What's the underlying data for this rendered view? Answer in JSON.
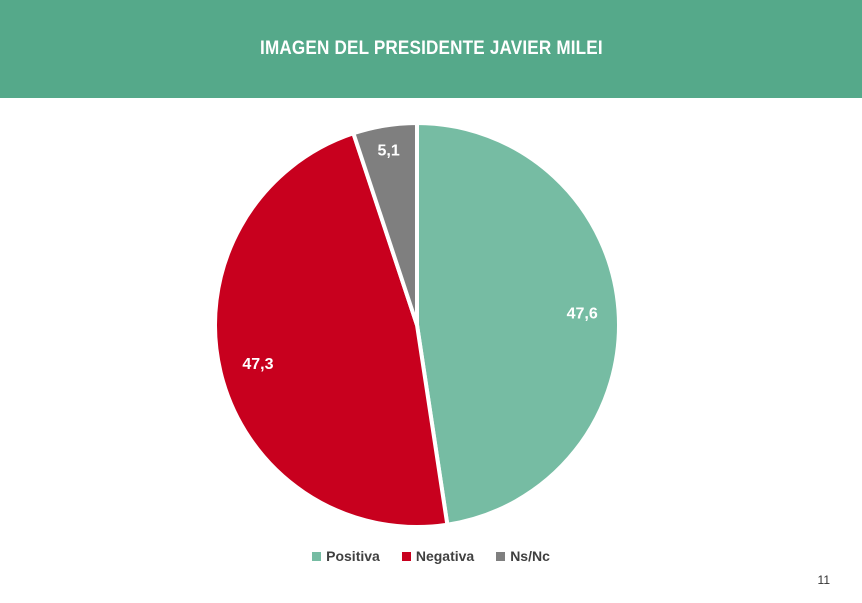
{
  "header": {
    "title": "IMAGEN DEL PRESIDENTE JAVIER MILEI"
  },
  "chart_data": {
    "type": "pie",
    "title": "IMAGEN DEL PRESIDENTE JAVIER MILEI",
    "slices": [
      {
        "name": "Positiva",
        "value": 47.6,
        "label": "47,6",
        "color": "#76bca3"
      },
      {
        "name": "Negativa",
        "value": 47.3,
        "label": "47,3",
        "color": "#c8001e"
      },
      {
        "name": "Ns/Nc",
        "value": 5.1,
        "label": "5,1",
        "color": "#7f7f7f"
      }
    ],
    "legend_position": "bottom"
  },
  "legend": {
    "items": [
      {
        "label": "Positiva",
        "color": "#76bca3"
      },
      {
        "label": "Negativa",
        "color": "#c8001e"
      },
      {
        "label": "Ns/Nc",
        "color": "#7f7f7f"
      }
    ]
  },
  "footer": {
    "page_number": "11"
  }
}
